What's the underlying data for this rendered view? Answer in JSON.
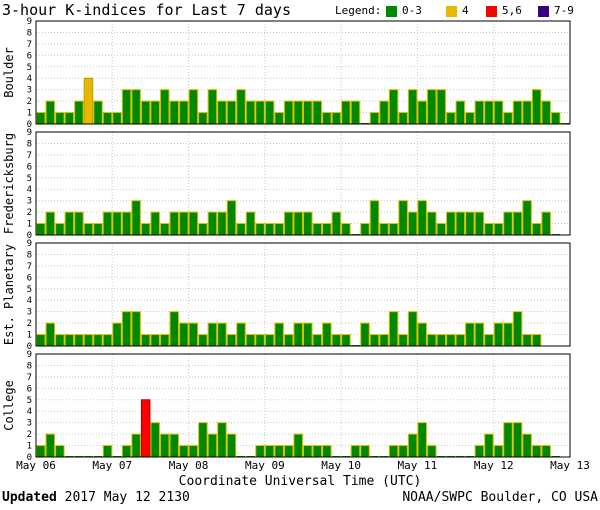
{
  "title": "3-hour K-indices for Last 7 days",
  "legend": {
    "label": "Legend:",
    "items": [
      {
        "label": "0-3",
        "color": "#008800"
      },
      {
        "label": "4",
        "color": "#e6b800"
      },
      {
        "label": "5,6",
        "color": "#ff0000"
      },
      {
        "label": "7-9",
        "color": "#3c0080"
      }
    ]
  },
  "chart_data": {
    "type": "bar",
    "xlabel": "Coordinate Universal Time (UTC)",
    "x_ticks": [
      "May 06",
      "May 07",
      "May 08",
      "May 09",
      "May 10",
      "May 11",
      "May 12",
      "May 13"
    ],
    "ylim": [
      0,
      9
    ],
    "y_ticks": [
      "0",
      "1",
      "2",
      "3",
      "4",
      "5",
      "6",
      "7",
      "8",
      "9"
    ],
    "bins_per_day": 8,
    "series": [
      {
        "name": "Boulder",
        "values": [
          1,
          2,
          1,
          1,
          2,
          4,
          2,
          1,
          1,
          3,
          3,
          2,
          2,
          3,
          2,
          2,
          3,
          1,
          3,
          2,
          2,
          3,
          2,
          2,
          2,
          1,
          2,
          2,
          2,
          2,
          1,
          1,
          2,
          2,
          0,
          1,
          2,
          3,
          1,
          3,
          2,
          3,
          3,
          1,
          2,
          1,
          2,
          2,
          2,
          1,
          2,
          2,
          3,
          2,
          1,
          0
        ]
      },
      {
        "name": "Fredericksburg",
        "values": [
          1,
          2,
          1,
          2,
          2,
          1,
          1,
          2,
          2,
          2,
          3,
          1,
          2,
          1,
          2,
          2,
          2,
          1,
          2,
          2,
          3,
          1,
          2,
          1,
          1,
          1,
          2,
          2,
          2,
          1,
          1,
          2,
          1,
          0,
          1,
          3,
          1,
          1,
          3,
          2,
          3,
          2,
          1,
          2,
          2,
          2,
          2,
          1,
          1,
          2,
          2,
          3,
          1,
          2,
          0
        ]
      },
      {
        "name": "Est. Planetary",
        "values": [
          1,
          2,
          1,
          1,
          1,
          1,
          1,
          1,
          2,
          3,
          3,
          1,
          1,
          1,
          3,
          2,
          2,
          1,
          2,
          2,
          1,
          2,
          1,
          1,
          1,
          2,
          1,
          2,
          2,
          1,
          2,
          1,
          1,
          0,
          2,
          1,
          1,
          3,
          1,
          3,
          2,
          1,
          1,
          1,
          1,
          2,
          2,
          1,
          2,
          2,
          3,
          1,
          1
        ]
      },
      {
        "name": "College",
        "values": [
          1,
          2,
          1,
          0,
          0,
          0,
          0,
          1,
          0,
          1,
          2,
          5,
          3,
          2,
          2,
          1,
          1,
          3,
          2,
          3,
          2,
          0,
          0,
          1,
          1,
          1,
          1,
          2,
          1,
          1,
          1,
          0,
          0,
          1,
          1,
          0,
          0,
          1,
          1,
          2,
          3,
          1,
          0,
          0,
          0,
          0,
          1,
          2,
          1,
          3,
          3,
          2,
          1,
          1,
          0
        ]
      }
    ]
  },
  "footer": {
    "updated_label": "Updated",
    "updated_value": "2017 May 12 2130",
    "credit": "NOAA/SWPC Boulder, CO USA"
  }
}
